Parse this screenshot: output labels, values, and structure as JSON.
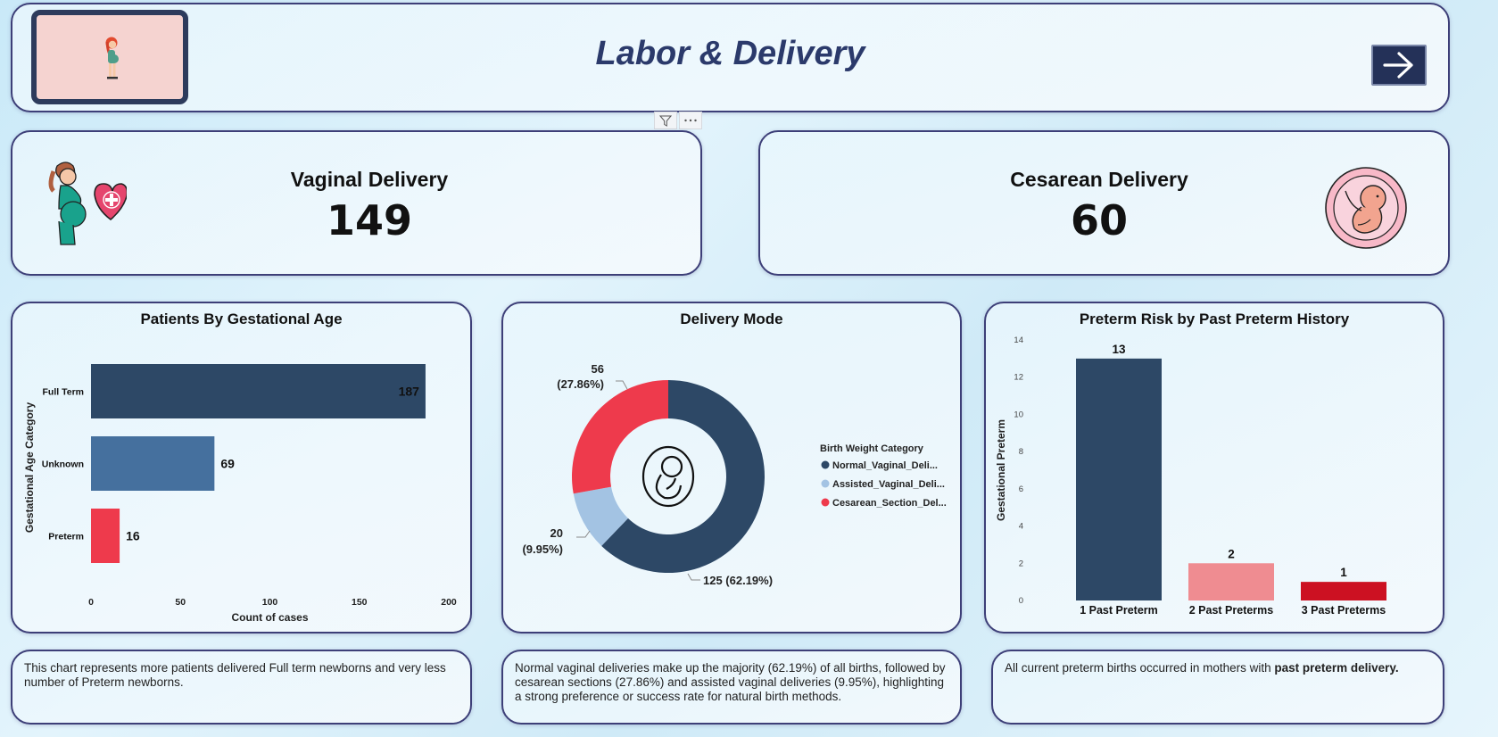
{
  "header": {
    "title": "Labor & Delivery"
  },
  "kpis": {
    "vaginal": {
      "label": "Vaginal Delivery",
      "value": "149"
    },
    "cesarean": {
      "label": "Cesarean Delivery",
      "value": "60"
    }
  },
  "gestational": {
    "title": "Patients By Gestational Age",
    "chart_data": {
      "type": "bar",
      "orientation": "horizontal",
      "title": "Patients By Gestational Age",
      "xlabel": "Count of cases",
      "ylabel": "Gestational Age Category",
      "categories": [
        "Full Term",
        "Unknown",
        "Preterm"
      ],
      "values": [
        187,
        69,
        16
      ],
      "value_labels": [
        "187",
        "69",
        "16"
      ],
      "xlim": [
        0,
        200
      ],
      "xticks": [
        0,
        50,
        100,
        150,
        200
      ],
      "tick_labels": [
        "0",
        "50",
        "100",
        "150",
        "200"
      ],
      "colors": [
        "#2d4866",
        "#45709e",
        "#ee3a4c"
      ]
    }
  },
  "delivery_mode": {
    "title": "Delivery Mode",
    "legend_title": "Birth Weight Category",
    "chart_data": {
      "type": "pie",
      "donut": true,
      "title": "Delivery Mode",
      "legend_title": "Birth Weight Category",
      "slices": [
        {
          "label": "Normal_Vaginal_Deli...",
          "value": 125,
          "percent": 62.19,
          "color": "#2d4866",
          "count_label": "125",
          "pct_label": "(62.19%)"
        },
        {
          "label": "Assisted_Vaginal_Deli...",
          "value": 20,
          "percent": 9.95,
          "color": "#a3c3e3",
          "count_label": "20",
          "pct_label": "(9.95%)"
        },
        {
          "label": "Cesarean_Section_Del...",
          "value": 56,
          "percent": 27.86,
          "color": "#ee3a4c",
          "count_label": "56",
          "pct_label": "(27.86%)"
        }
      ],
      "legend_placement": "right"
    }
  },
  "preterm": {
    "title": "Preterm Risk by Past Preterm History",
    "chart_data": {
      "type": "bar",
      "title": "Preterm Risk by Past Preterm History",
      "ylabel": "Gestational Preterm",
      "categories": [
        "1 Past Preterm",
        "2 Past Preterms",
        "3 Past Preterms"
      ],
      "values": [
        13,
        2,
        1
      ],
      "value_labels": [
        "13",
        "2",
        "1"
      ],
      "ylim": [
        0,
        14
      ],
      "yticks": [
        0,
        2,
        4,
        6,
        8,
        10,
        12,
        14
      ],
      "tick_labels": [
        "0",
        "2",
        "4",
        "6",
        "8",
        "10",
        "12",
        "14"
      ],
      "colors": [
        "#2d4866",
        "#ef8c91",
        "#cc1122"
      ]
    }
  },
  "notes": {
    "gestational": "This chart represents more patients delivered Full term newborns and very less number of Preterm newborns.",
    "delivery_mode": "Normal vaginal deliveries make up the majority (62.19%) of all births, followed by cesarean sections (27.86%) and assisted vaginal deliveries (9.95%), highlighting a strong preference or success rate for natural birth methods.",
    "preterm_prefix": "All current preterm births occurred in mothers with ",
    "preterm_bold": "past preterm delivery."
  },
  "icons": {
    "logo": "pregnant-woman-illustration",
    "nav": "arrow-right-icon",
    "vaginal": "pregnant-woman-heart-icon",
    "cesarean": "fetus-icon",
    "donut_center": "fetus-outline-icon",
    "tools": [
      "filter-icon",
      "more-options-icon"
    ]
  }
}
